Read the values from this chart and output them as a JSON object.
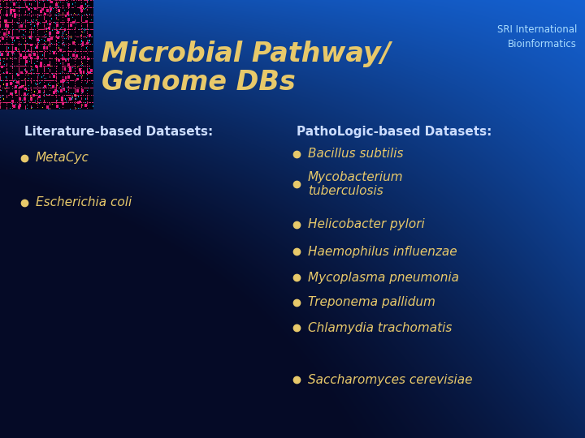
{
  "title_line1": "Microbial Pathway/",
  "title_line2": "Genome DBs",
  "title_color": "#e8c96a",
  "title_fontsize": 24,
  "sri_text": "SRI International\nBioinformatics",
  "sri_color": "#aaddff",
  "sri_fontsize": 8.5,
  "left_header": "Literature-based Datasets:",
  "right_header": "PathoLogic-based Datasets:",
  "header_color": "#ccddff",
  "header_fontsize": 11,
  "bullet_color": "#e8c96a",
  "left_items": [
    "MetaCyc",
    "Escherichia coli"
  ],
  "right_items": [
    "Bacillus subtilis",
    "Mycobacterium\ntuberculosis",
    "Helicobacter pylori",
    "Haemophilus influenzae",
    "Mycoplasma pneumonia",
    "Treponema pallidum",
    "Chlamydia trachomatis"
  ],
  "bottom_item": "Saccharomyces cerevisiae",
  "item_color": "#e8c96a",
  "item_fontsize": 11,
  "bg_blue": "#1560d0",
  "bg_dark": "#000010"
}
